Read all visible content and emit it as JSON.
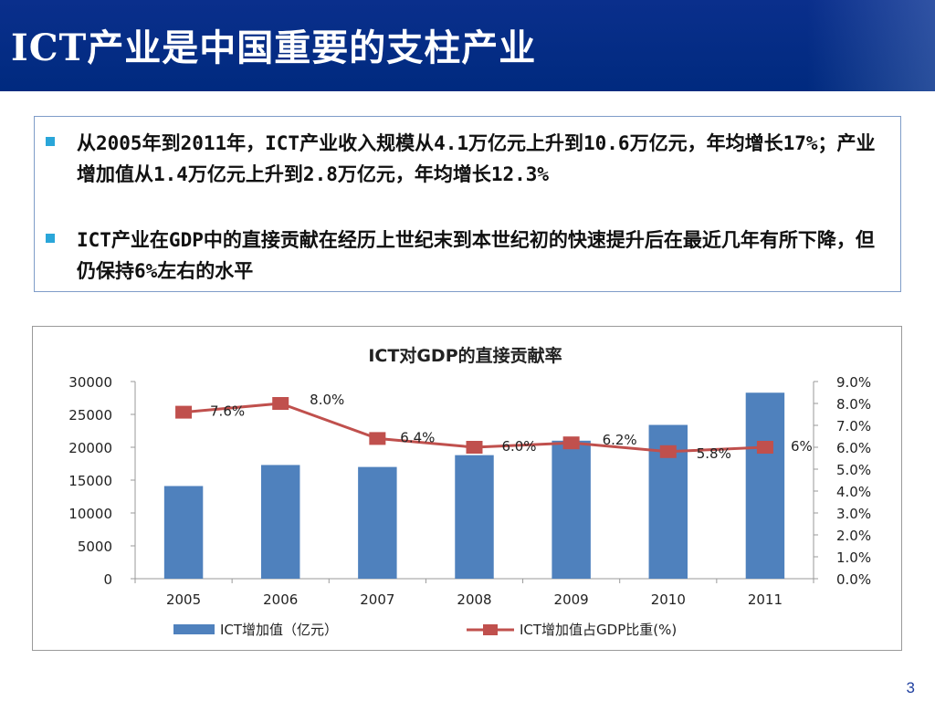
{
  "slide": {
    "title": "ICT产业是中国重要的支柱产业",
    "page_number": "3",
    "bullets": [
      "从2005年到2011年，ICT产业收入规模从4.1万亿元上升到10.6万亿元，年均增长17%；产业增加值从1.4万亿元上升到2.8万亿元，年均增长12.3%",
      "ICT产业在GDP中的直接贡献在经历上世纪末到本世纪初的快速提升后在最近几年有所下降，但仍保持6%左右的水平"
    ]
  },
  "chart_data": {
    "type": "bar",
    "title": "ICT对GDP的直接贡献率",
    "categories": [
      "2005",
      "2006",
      "2007",
      "2008",
      "2009",
      "2010",
      "2011"
    ],
    "series": [
      {
        "name": "ICT增加值（亿元）",
        "type": "bar",
        "axis": "left",
        "color": "#4f81bd",
        "values": [
          14100,
          17300,
          17000,
          18800,
          21000,
          23400,
          28300
        ]
      },
      {
        "name": "ICT增加值占GDP比重(%)",
        "type": "line",
        "axis": "right",
        "color": "#c0504d",
        "values": [
          7.6,
          8.0,
          6.4,
          6.0,
          6.2,
          5.8,
          6.0
        ],
        "labels": [
          "7.6%",
          "8.0%",
          "6.4%",
          "6.0%",
          "6.2%",
          "5.8%",
          "6%"
        ]
      }
    ],
    "y_left": {
      "min": 0,
      "max": 30000,
      "ticks": [
        "0",
        "5000",
        "10000",
        "15000",
        "20000",
        "25000",
        "30000"
      ]
    },
    "y_right": {
      "min": 0,
      "max": 9,
      "ticks": [
        "0.0%",
        "1.0%",
        "2.0%",
        "3.0%",
        "4.0%",
        "5.0%",
        "6.0%",
        "7.0%",
        "8.0%",
        "9.0%"
      ]
    },
    "grid": false,
    "legend": "bottom"
  }
}
